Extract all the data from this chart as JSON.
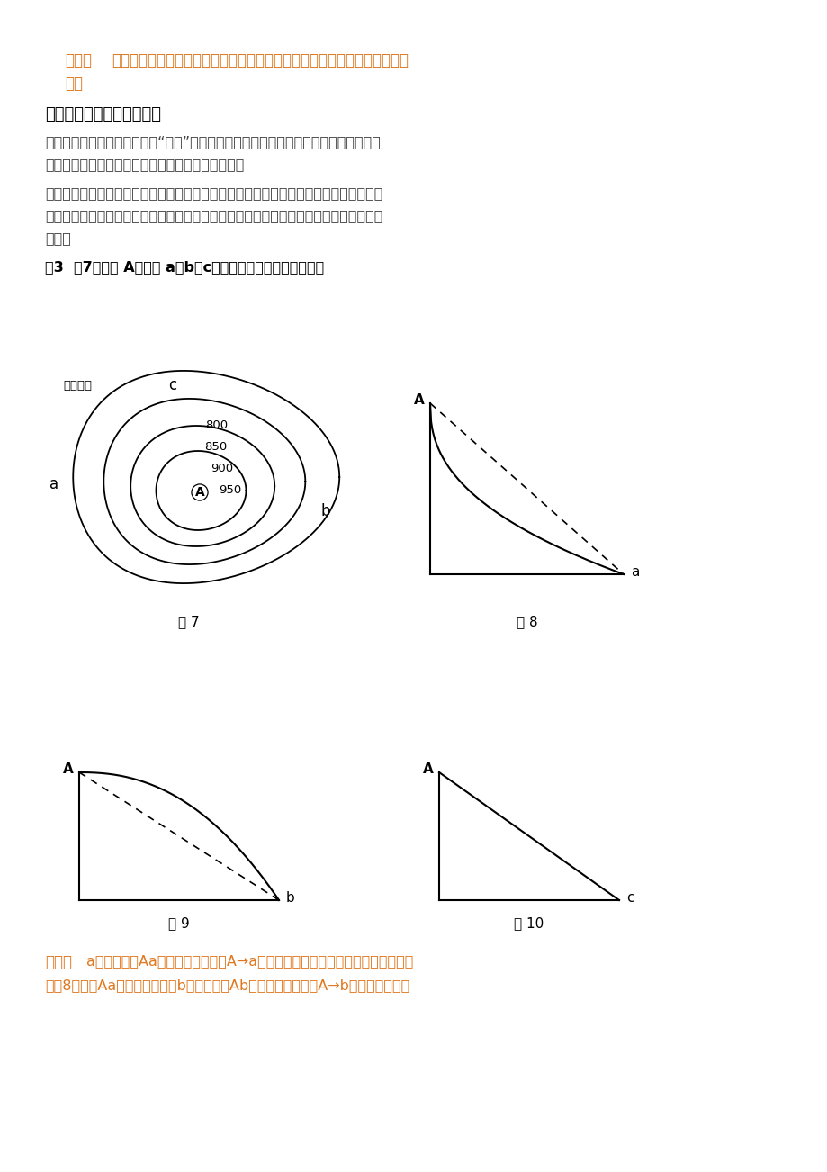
{
  "title_answer_label": "答案：",
  "section_title": "三、凹坡、凸坡、等齐斜坡",
  "fig7_label": "图 7",
  "fig8_label": "图 8",
  "fig9_label": "图 9",
  "fig10_label": "图 10",
  "analysis_label": "解析：",
  "bg_color": "#ffffff",
  "text_color": "#444444",
  "orange_color": "#e07820",
  "black_color": "#000000"
}
